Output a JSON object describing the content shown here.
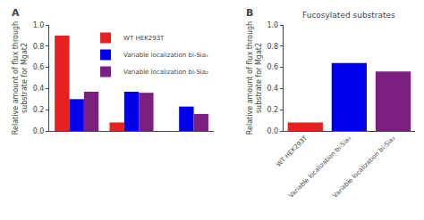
{
  "chart_data": [
    {
      "type": "bar",
      "categories": [
        null,
        null,
        null
      ],
      "series": [
        {
          "name": "WT HEK293T",
          "color": "#e82020",
          "values": [
            0.9,
            0.08,
            0.0
          ]
        },
        {
          "name": "Variable localization bi-Sia₁",
          "color": "#0000ee",
          "values": [
            0.3,
            0.37,
            0.23
          ]
        },
        {
          "name": "Variable localization bi-Sia₂",
          "color": "#7b2080",
          "values": [
            0.37,
            0.36,
            0.16
          ]
        }
      ],
      "ylabel": "Relative amount of flux through\nsubstrate for Mgat2",
      "ylim": [
        0,
        1.0
      ],
      "yticks": [
        {
          "value": 0,
          "label": "0.0"
        },
        0.2,
        0.4,
        0.6,
        0.8,
        {
          "value": 1.0,
          "label": "1.0"
        }
      ],
      "grid": false,
      "legend": "upper right",
      "annotations": [
        {
          "text": "A"
        }
      ]
    },
    {
      "type": "bar",
      "title": "Fucosylated substrates",
      "categories": [
        "WT HEK293T",
        "Variable localization bi-Sia₁",
        "Variable localization bi-Sia₂"
      ],
      "values": [
        0.08,
        0.64,
        0.56
      ],
      "colors": [
        "#e82020",
        "#0000ee",
        "#7b2080"
      ],
      "ylabel": "Relative amount of flux through\nsubstrate for Mgat2",
      "ylim": [
        0,
        1.0
      ],
      "yticks": [
        {
          "value": 0,
          "label": "0.0"
        },
        0.2,
        0.4,
        0.6,
        0.8,
        {
          "value": 1.0,
          "label": "1.0"
        }
      ],
      "grid": false,
      "annotations": [
        {
          "text": "B"
        }
      ]
    }
  ]
}
